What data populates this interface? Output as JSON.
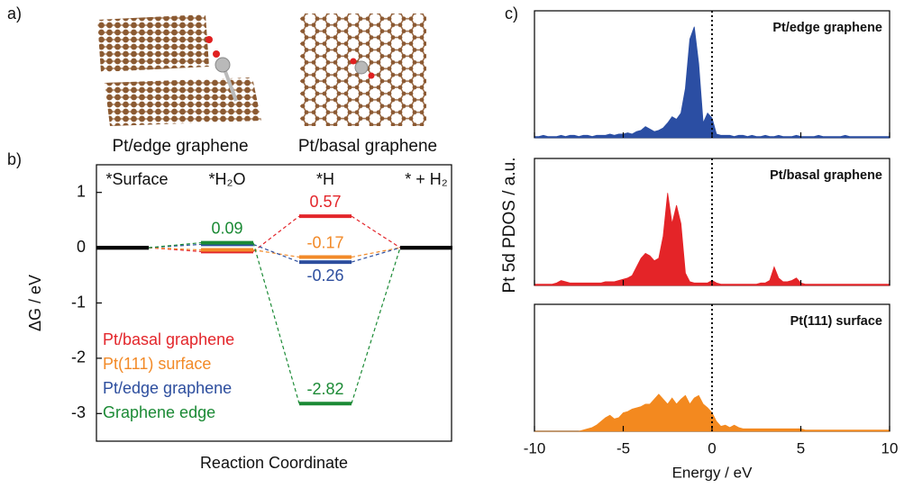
{
  "panel_labels": [
    "a)",
    "b)",
    "c)"
  ],
  "structures": [
    "Pt/edge graphene",
    "Pt/basal graphene"
  ],
  "chart_data": [
    {
      "type": "energy-diagram",
      "ylabel": "ΔG / eV",
      "xlabel": "Reaction Coordinate",
      "categories": [
        "*Surface",
        "*H₂O",
        "*H",
        "* + H₂"
      ],
      "ylim": [
        -3.5,
        1.5
      ],
      "yticks": [
        1,
        0,
        -1,
        -2,
        -3
      ],
      "baseline_color": "#000000",
      "series": [
        {
          "name": "Pt/basal graphene",
          "color": "#e3262b",
          "values": [
            0,
            -0.07,
            0.57,
            0
          ],
          "value_labels": [
            null,
            null,
            "0.57",
            null
          ]
        },
        {
          "name": "Pt(111) surface",
          "color": "#f28a28",
          "values": [
            0,
            -0.04,
            -0.17,
            0
          ],
          "value_labels": [
            null,
            null,
            "-0.17",
            null
          ]
        },
        {
          "name": "Pt/edge graphene",
          "color": "#2d4e9e",
          "values": [
            0,
            0.06,
            -0.26,
            0
          ],
          "value_labels": [
            null,
            null,
            "-0.26",
            null
          ]
        },
        {
          "name": "Graphene edge",
          "color": "#1b8a35",
          "values": [
            0,
            0.09,
            -2.82,
            0
          ],
          "value_labels": [
            null,
            "0.09",
            "-2.82",
            null
          ]
        }
      ]
    },
    {
      "type": "area",
      "xlabel": "Energy / eV",
      "ylabel": "Pt 5d PDOS / a.u.",
      "xlim": [
        -10,
        10
      ],
      "xticks": [
        -10,
        -5,
        0,
        5,
        10
      ],
      "ylim": [
        0,
        1
      ],
      "vline": 0,
      "x": [
        -10,
        -9.75,
        -9.5,
        -9.25,
        -9,
        -8.75,
        -8.5,
        -8.25,
        -8,
        -7.75,
        -7.5,
        -7.25,
        -7,
        -6.75,
        -6.5,
        -6.25,
        -6,
        -5.75,
        -5.5,
        -5.25,
        -5,
        -4.75,
        -4.5,
        -4.25,
        -4,
        -3.75,
        -3.5,
        -3.25,
        -3,
        -2.75,
        -2.5,
        -2.25,
        -2,
        -1.75,
        -1.5,
        -1.25,
        -1,
        -0.75,
        -0.5,
        -0.25,
        0,
        0.25,
        0.5,
        0.75,
        1,
        1.25,
        1.5,
        1.75,
        2,
        2.25,
        2.5,
        2.75,
        3,
        3.25,
        3.5,
        3.75,
        4,
        4.25,
        4.5,
        4.75,
        5,
        5.25,
        5.5,
        5.75,
        6,
        6.25,
        6.5,
        6.75,
        7,
        7.25,
        7.5,
        7.75,
        8,
        8.25,
        8.5,
        8.75,
        9,
        9.25,
        9.5,
        9.75,
        10
      ],
      "series": [
        {
          "name": "Pt/edge graphene",
          "color": "#2b4ea3",
          "values": [
            0.01,
            0.01,
            0.02,
            0.01,
            0.01,
            0.01,
            0.02,
            0.01,
            0.02,
            0.02,
            0.01,
            0.02,
            0.02,
            0.01,
            0.02,
            0.02,
            0.02,
            0.03,
            0.02,
            0.03,
            0.03,
            0.04,
            0.03,
            0.05,
            0.06,
            0.09,
            0.07,
            0.05,
            0.06,
            0.08,
            0.12,
            0.17,
            0.15,
            0.2,
            0.4,
            0.8,
            0.9,
            0.6,
            0.12,
            0.2,
            0.16,
            0.03,
            0.02,
            0.02,
            0.02,
            0.01,
            0.02,
            0.02,
            0.01,
            0.02,
            0.01,
            0.01,
            0.02,
            0.01,
            0.01,
            0.02,
            0.01,
            0.01,
            0.01,
            0.02,
            0.01,
            0.01,
            0.01,
            0.01,
            0.02,
            0.01,
            0.01,
            0.01,
            0.01,
            0.01,
            0.02,
            0.01,
            0.01,
            0.01,
            0.01,
            0.01,
            0.01,
            0.01,
            0.01,
            0.01,
            0.01
          ]
        },
        {
          "name": "Pt/basal graphene",
          "color": "#e42428",
          "values": [
            0.01,
            0.01,
            0.01,
            0.01,
            0.01,
            0.02,
            0.04,
            0.03,
            0.02,
            0.02,
            0.02,
            0.02,
            0.02,
            0.02,
            0.02,
            0.02,
            0.03,
            0.03,
            0.03,
            0.04,
            0.05,
            0.06,
            0.08,
            0.15,
            0.22,
            0.26,
            0.24,
            0.2,
            0.22,
            0.4,
            0.75,
            0.5,
            0.65,
            0.5,
            0.1,
            0.03,
            0.02,
            0.02,
            0.02,
            0.02,
            0.04,
            0.02,
            0.01,
            0.01,
            0.01,
            0.01,
            0.01,
            0.01,
            0.01,
            0.01,
            0.01,
            0.02,
            0.02,
            0.04,
            0.15,
            0.06,
            0.03,
            0.03,
            0.04,
            0.06,
            0.02,
            0.01,
            0.01,
            0.01,
            0.01,
            0.01,
            0.01,
            0.01,
            0.01,
            0.01,
            0.01,
            0.01,
            0.01,
            0.01,
            0.01,
            0.01,
            0.01,
            0.01,
            0.01,
            0.01,
            0.01
          ]
        },
        {
          "name": "Pt(111) surface",
          "color": "#f3891f",
          "values": [
            0,
            0,
            0,
            0,
            0,
            0,
            0,
            0,
            0,
            0,
            0,
            0.01,
            0.02,
            0.03,
            0.05,
            0.08,
            0.11,
            0.13,
            0.1,
            0.11,
            0.15,
            0.16,
            0.18,
            0.19,
            0.2,
            0.22,
            0.22,
            0.26,
            0.3,
            0.26,
            0.22,
            0.27,
            0.22,
            0.26,
            0.29,
            0.22,
            0.27,
            0.29,
            0.22,
            0.19,
            0.15,
            0.08,
            0.04,
            0.05,
            0.03,
            0.05,
            0.03,
            0.02,
            0.02,
            0.02,
            0.02,
            0.02,
            0.02,
            0.02,
            0.02,
            0.02,
            0.02,
            0.02,
            0.02,
            0.02,
            0.02,
            0.01,
            0.01,
            0.01,
            0.01,
            0.01,
            0.01,
            0.01,
            0.01,
            0.01,
            0.01,
            0.01,
            0.01,
            0.01,
            0.01,
            0.01,
            0.01,
            0.01,
            0.01,
            0.01,
            0.01
          ]
        }
      ]
    }
  ]
}
